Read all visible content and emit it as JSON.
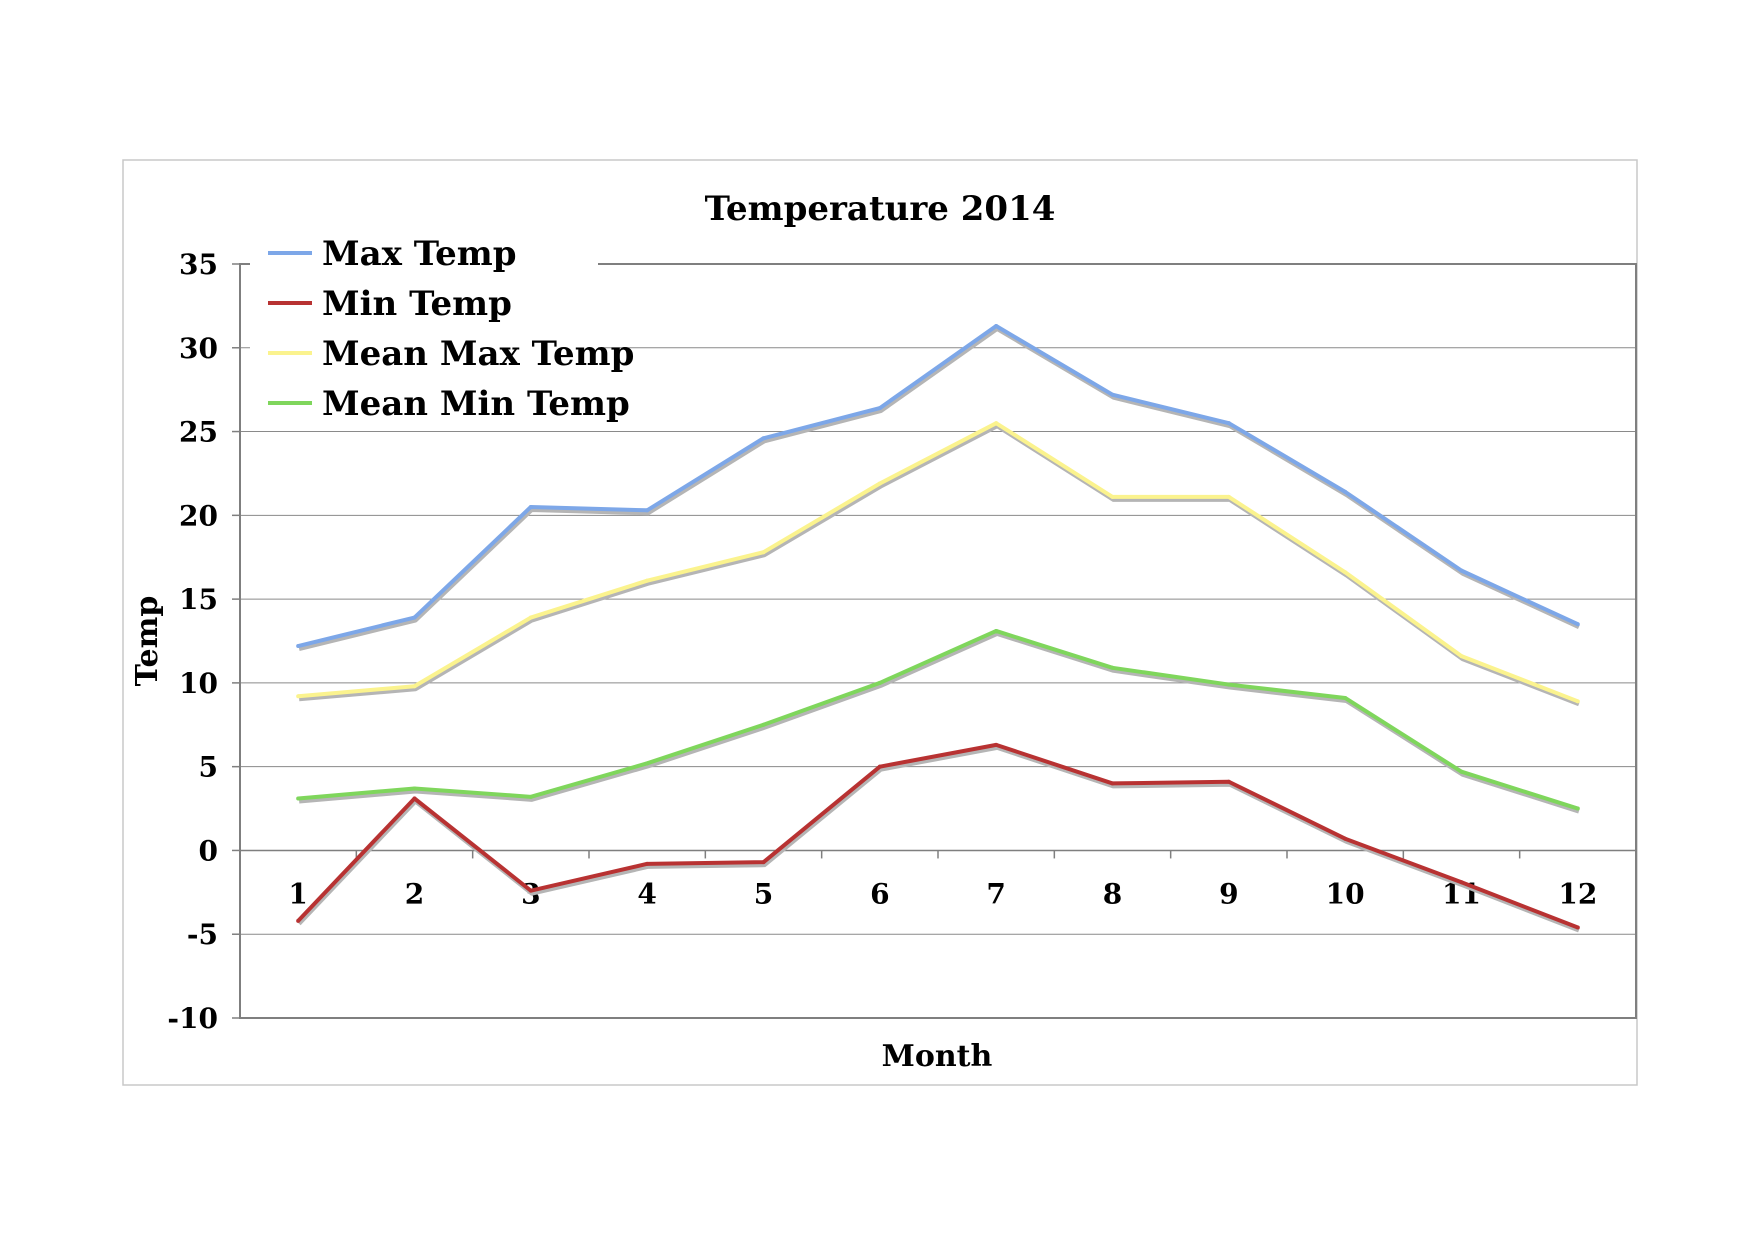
{
  "chart_data": {
    "type": "line",
    "title": "Temperature 2014",
    "xlabel": "Month",
    "ylabel": "Temp",
    "categories": [
      "1",
      "2",
      "3",
      "4",
      "5",
      "6",
      "7",
      "8",
      "9",
      "10",
      "11",
      "12"
    ],
    "ylim": [
      -10,
      35
    ],
    "yticks": [
      35,
      30,
      25,
      20,
      15,
      10,
      5,
      0,
      -5,
      -10
    ],
    "grid": true,
    "legend_position": "top-left",
    "series": [
      {
        "name": "Max Temp",
        "color": "#7da7e8",
        "values": [
          12.2,
          13.9,
          20.5,
          20.3,
          24.6,
          26.4,
          31.3,
          27.2,
          25.5,
          21.4,
          16.7,
          13.5
        ]
      },
      {
        "name": "Min Temp",
        "color": "#b83232",
        "values": [
          -4.2,
          3.1,
          -2.4,
          -0.8,
          -0.7,
          5.0,
          6.3,
          4.0,
          4.1,
          0.7,
          -1.9,
          -4.6
        ]
      },
      {
        "name": "Mean Max Temp",
        "color": "#fbf38e",
        "values": [
          9.2,
          9.8,
          13.9,
          16.1,
          17.8,
          21.9,
          25.5,
          21.1,
          21.1,
          16.6,
          11.6,
          8.9
        ]
      },
      {
        "name": "Mean Min Temp",
        "color": "#7fd65c",
        "values": [
          3.1,
          3.7,
          3.2,
          5.2,
          7.5,
          10.0,
          13.1,
          10.9,
          9.9,
          9.1,
          4.7,
          2.5
        ]
      }
    ]
  }
}
